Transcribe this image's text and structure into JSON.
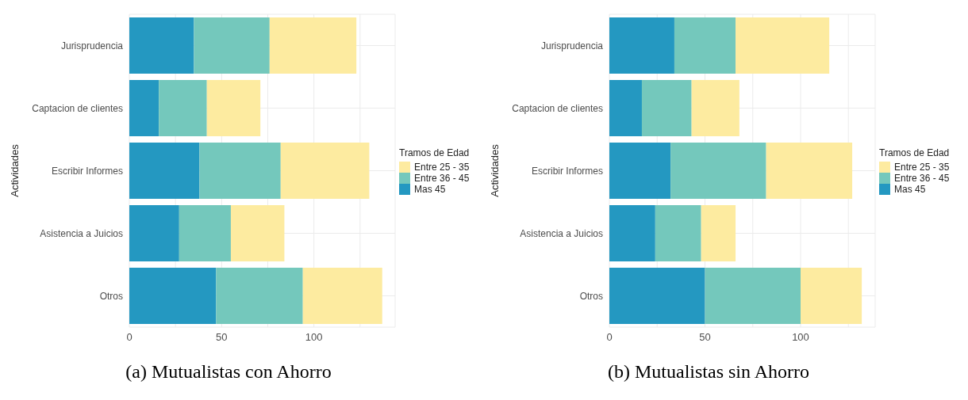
{
  "chart_data": [
    {
      "type": "bar",
      "orientation": "horizontal",
      "stacked": true,
      "title": "(a) Mutualistas con Ahorro",
      "ylabel": "Actividades",
      "legend_title": "Tramos de Edad",
      "legend": "right",
      "grid": true,
      "categories": [
        "Jurisprudencia",
        "Captacion de clientes",
        "Escribir Informes",
        "Asistencia a Juicios",
        "Otros"
      ],
      "xlim": [
        0,
        144
      ],
      "xticks": [
        0,
        {
          "value": 25,
          "label": null
        },
        50,
        {
          "value": 75,
          "label": null
        },
        100,
        {
          "value": 125,
          "label": null
        }
      ],
      "series": [
        {
          "name": "Mas 45",
          "color": "#2498c1",
          "values": [
            35,
            16,
            38,
            27,
            47
          ]
        },
        {
          "name": "Entre 36 - 45",
          "color": "#74c8bc",
          "values": [
            41,
            26,
            44,
            28,
            47
          ]
        },
        {
          "name": "Entre 25 - 35",
          "color": "#fdeba0",
          "values": [
            47,
            29,
            48,
            29,
            43
          ]
        }
      ]
    },
    {
      "type": "bar",
      "orientation": "horizontal",
      "stacked": true,
      "title": "(b) Mutualistas sin Ahorro",
      "ylabel": "Actividades",
      "legend_title": "Tramos de Edad",
      "legend": "right",
      "grid": true,
      "categories": [
        "Jurisprudencia",
        "Captacion de clientes",
        "Escribir Informes",
        "Asistencia a Juicios",
        "Otros"
      ],
      "xlim": [
        0,
        139
      ],
      "xticks": [
        0,
        {
          "value": 25,
          "label": null
        },
        50,
        {
          "value": 75,
          "label": null
        },
        100,
        {
          "value": 125,
          "label": null
        }
      ],
      "series": [
        {
          "name": "Mas 45",
          "color": "#2498c1",
          "values": [
            34,
            17,
            32,
            24,
            50
          ]
        },
        {
          "name": "Entre 36 - 45",
          "color": "#74c8bc",
          "values": [
            32,
            26,
            50,
            24,
            50
          ]
        },
        {
          "name": "Entre 25 - 35",
          "color": "#fdeba0",
          "values": [
            49,
            25,
            45,
            18,
            32
          ]
        }
      ]
    }
  ]
}
